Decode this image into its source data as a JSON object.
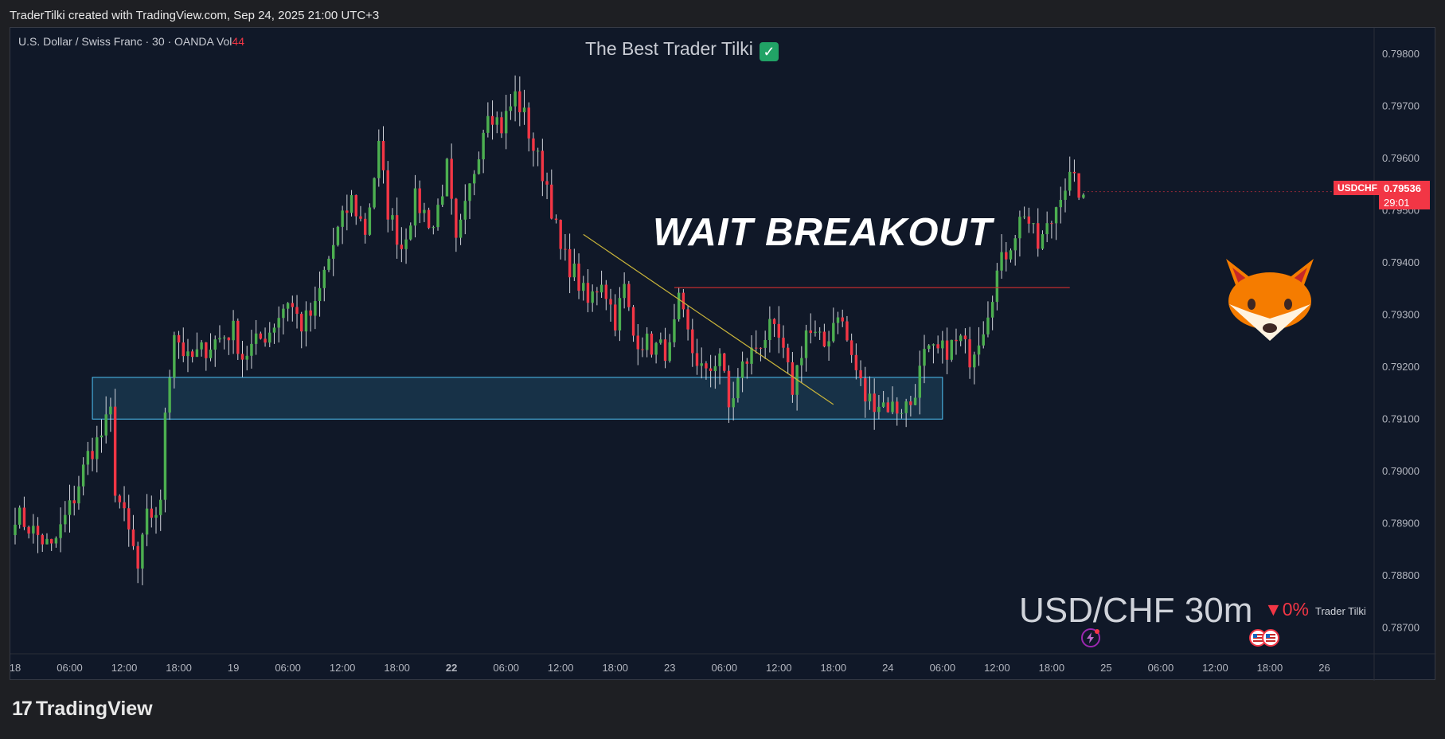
{
  "header": {
    "credit": "TraderTilki created with TradingView.com, Sep 24, 2025 21:00 UTC+3"
  },
  "legend": {
    "symbol_text": "U.S. Dollar / Swiss Franc · 30 · OANDA  Vol",
    "vol_value": "44"
  },
  "overlay": {
    "title": "The Best Trader Tilki",
    "check_icon": "✓",
    "annotation": "WAIT BREAKOUT",
    "pair_label": "USD/CHF 30m",
    "change": "▼0%",
    "author": "Trader Tilki",
    "mascot_icon": "fox-face-icon"
  },
  "price_tag": {
    "symbol": "USDCHF",
    "value": "0.79536",
    "countdown": "29:01",
    "color": "#f23645"
  },
  "footer": {
    "logo_mark": "17",
    "logo_text": "TradingView"
  },
  "colors": {
    "background": "#101828",
    "up": "#4caf50",
    "down": "#f23645",
    "zone_fill": "#1a3a52",
    "zone_border": "#4fc3f7",
    "trendline": "#c9b43a",
    "resistance": "#d32f2f"
  },
  "chart_data": {
    "type": "candlestick",
    "symbol": "USD/CHF",
    "timeframe": "30",
    "ylim": [
      0.7865,
      0.7985
    ],
    "y_ticks": [
      "0.79800",
      "0.79700",
      "0.79600",
      "0.79500",
      "0.79400",
      "0.79300",
      "0.79200",
      "0.79100",
      "0.79000",
      "0.78900",
      "0.78800",
      "0.78700"
    ],
    "y_tick_values": [
      0.798,
      0.797,
      0.796,
      0.795,
      0.794,
      0.793,
      0.792,
      0.791,
      0.79,
      0.789,
      0.788,
      0.787
    ],
    "x_ticks": [
      "18",
      "06:00",
      "12:00",
      "18:00",
      "19",
      "06:00",
      "12:00",
      "18:00",
      "22",
      "06:00",
      "12:00",
      "18:00",
      "23",
      "06:00",
      "12:00",
      "18:00",
      "24",
      "06:00",
      "12:00",
      "18:00",
      "25",
      "06:00",
      "12:00",
      "18:00",
      "26"
    ],
    "x_tick_bold": [
      false,
      false,
      false,
      false,
      false,
      false,
      false,
      false,
      true,
      false,
      false,
      false,
      false,
      false,
      false,
      false,
      false,
      false,
      false,
      false,
      false,
      false,
      false,
      false,
      false
    ],
    "x_tick_index": [
      0,
      12,
      24,
      36,
      48,
      60,
      72,
      84,
      96,
      108,
      120,
      132,
      144,
      156,
      168,
      180,
      192,
      204,
      216,
      228,
      240,
      252,
      264,
      276,
      288
    ],
    "x_total": 300,
    "anchors": [
      [
        0,
        0.7892
      ],
      [
        8,
        0.7885
      ],
      [
        13,
        0.7895
      ],
      [
        16,
        0.7903
      ],
      [
        19,
        0.7907
      ],
      [
        21,
        0.7911
      ],
      [
        22,
        0.7897
      ],
      [
        26,
        0.7885
      ],
      [
        27,
        0.7881
      ],
      [
        29,
        0.7891
      ],
      [
        32,
        0.7893
      ],
      [
        33,
        0.7912
      ],
      [
        35,
        0.7927
      ],
      [
        38,
        0.7921
      ],
      [
        44,
        0.7925
      ],
      [
        48,
        0.7927
      ],
      [
        50,
        0.7922
      ],
      [
        56,
        0.7927
      ],
      [
        60,
        0.7933
      ],
      [
        63,
        0.7928
      ],
      [
        66,
        0.7931
      ],
      [
        68,
        0.7938
      ],
      [
        71,
        0.7946
      ],
      [
        74,
        0.7952
      ],
      [
        77,
        0.7946
      ],
      [
        80,
        0.7962
      ],
      [
        82,
        0.795
      ],
      [
        85,
        0.7943
      ],
      [
        88,
        0.7952
      ],
      [
        92,
        0.7947
      ],
      [
        95,
        0.7958
      ],
      [
        97,
        0.7943
      ],
      [
        99,
        0.795
      ],
      [
        102,
        0.7962
      ],
      [
        104,
        0.797
      ],
      [
        107,
        0.7966
      ],
      [
        110,
        0.7972
      ],
      [
        112,
        0.7968
      ],
      [
        114,
        0.7962
      ],
      [
        117,
        0.7955
      ],
      [
        120,
        0.7942
      ],
      [
        123,
        0.7938
      ],
      [
        126,
        0.7932
      ],
      [
        129,
        0.7937
      ],
      [
        132,
        0.7929
      ],
      [
        134,
        0.7935
      ],
      [
        136,
        0.7926
      ],
      [
        140,
        0.7924
      ],
      [
        144,
        0.7923
      ],
      [
        146,
        0.7932
      ],
      [
        149,
        0.7923
      ],
      [
        152,
        0.7918
      ],
      [
        155,
        0.7923
      ],
      [
        157,
        0.7912
      ],
      [
        160,
        0.792
      ],
      [
        163,
        0.7924
      ],
      [
        166,
        0.7927
      ],
      [
        168,
        0.7925
      ],
      [
        171,
        0.7916
      ],
      [
        174,
        0.7927
      ],
      [
        178,
        0.7924
      ],
      [
        181,
        0.7931
      ],
      [
        184,
        0.7922
      ],
      [
        187,
        0.7914
      ],
      [
        191,
        0.7913
      ],
      [
        194,
        0.7912
      ],
      [
        197,
        0.7913
      ],
      [
        200,
        0.7922
      ],
      [
        204,
        0.7923
      ],
      [
        208,
        0.7925
      ],
      [
        210,
        0.7922
      ],
      [
        213,
        0.7928
      ],
      [
        216,
        0.7938
      ],
      [
        219,
        0.7944
      ],
      [
        222,
        0.795
      ],
      [
        225,
        0.7943
      ],
      [
        228,
        0.7948
      ],
      [
        230,
        0.7954
      ],
      [
        232,
        0.7956
      ],
      [
        235,
        0.7953
      ]
    ],
    "zone": {
      "x_start": 17,
      "x_end": 204,
      "y_low": 0.791,
      "y_high": 0.7918
    },
    "trendline": {
      "x1": 125,
      "y1": 0.79454,
      "x2": 180,
      "y2": 0.79128
    },
    "resistance_line": {
      "x_start": 145,
      "x_end": 232,
      "y": 0.79352
    },
    "last_price": 0.79536
  }
}
